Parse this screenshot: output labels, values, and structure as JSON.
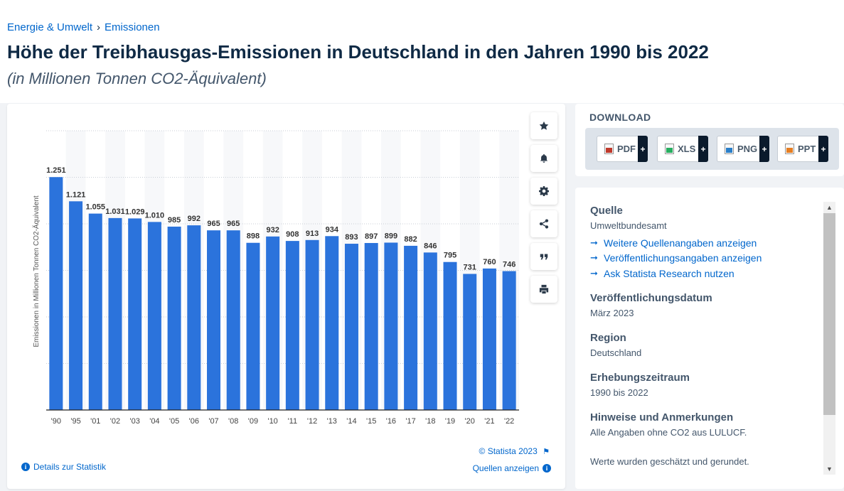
{
  "breadcrumb": {
    "category": "Energie & Umwelt",
    "separator": "›",
    "current": "Emissionen"
  },
  "page_title": "Höhe der Treibhausgas-Emissionen in Deutschland in den Jahren 1990 bis 2022",
  "page_subtitle": "(in Millionen Tonnen CO2-Äquivalent)",
  "chart_data": {
    "type": "bar",
    "categories": [
      "'90",
      "'95",
      "'01",
      "'02",
      "'03",
      "'04",
      "'05",
      "'06",
      "'07",
      "'08",
      "'09",
      "'10",
      "'11",
      "'12",
      "'13",
      "'14",
      "'15",
      "'16",
      "'17",
      "'18",
      "'19",
      "'20",
      "'21",
      "'22"
    ],
    "values": [
      1251,
      1121,
      1055,
      1031,
      1029,
      1010,
      985,
      992,
      965,
      965,
      898,
      932,
      908,
      913,
      934,
      893,
      897,
      899,
      882,
      846,
      795,
      731,
      760,
      746
    ],
    "value_labels": [
      "1.251",
      "1.121",
      "1.055",
      "1.031",
      "1.029",
      "1.010",
      "985",
      "992",
      "965",
      "965",
      "898",
      "932",
      "908",
      "913",
      "934",
      "893",
      "897",
      "899",
      "882",
      "846",
      "795",
      "731",
      "760",
      "746"
    ],
    "ylabel": "Emissionen in Millionen Tonnen CO2-Äquivalent",
    "ylim": [
      0,
      1500
    ],
    "gridlines": [
      250,
      500,
      750,
      1000,
      1250,
      1500
    ],
    "bar_color": "#2b73dc",
    "grid": true
  },
  "toolbar": {
    "items": [
      {
        "name": "favorite-star-icon",
        "icon": "star"
      },
      {
        "name": "notification-bell-icon",
        "icon": "bell"
      },
      {
        "name": "settings-gear-icon",
        "icon": "gear"
      },
      {
        "name": "share-icon",
        "icon": "share"
      },
      {
        "name": "cite-quote-icon",
        "icon": "quote"
      },
      {
        "name": "print-icon",
        "icon": "print"
      }
    ]
  },
  "chart_footer": {
    "copyright": "© Statista 2023",
    "details_link": "Details zur Statistik",
    "sources_link": "Quellen anzeigen"
  },
  "download": {
    "title": "DOWNLOAD",
    "buttons": [
      {
        "label": "PDF",
        "color": "#c0392b"
      },
      {
        "label": "XLS",
        "color": "#27ae60"
      },
      {
        "label": "PNG",
        "color": "#2a7fc9"
      },
      {
        "label": "PPT",
        "color": "#e67e22"
      }
    ],
    "plus": "+"
  },
  "info": {
    "source_heading": "Quelle",
    "source_value": "Umweltbundesamt",
    "links": [
      "Weitere Quellenangaben anzeigen",
      "Veröffentlichungsangaben anzeigen",
      "Ask Statista Research nutzen"
    ],
    "link_arrow": "➞",
    "pub_date_heading": "Veröffentlichungsdatum",
    "pub_date_value": "März 2023",
    "region_heading": "Region",
    "region_value": "Deutschland",
    "period_heading": "Erhebungszeitraum",
    "period_value": "1990 bis 2022",
    "notes_heading": "Hinweise und Anmerkungen",
    "notes_value_1": "Alle Angaben ohne CO2 aus LULUCF.",
    "notes_value_2": "Werte wurden geschätzt und gerundet."
  }
}
